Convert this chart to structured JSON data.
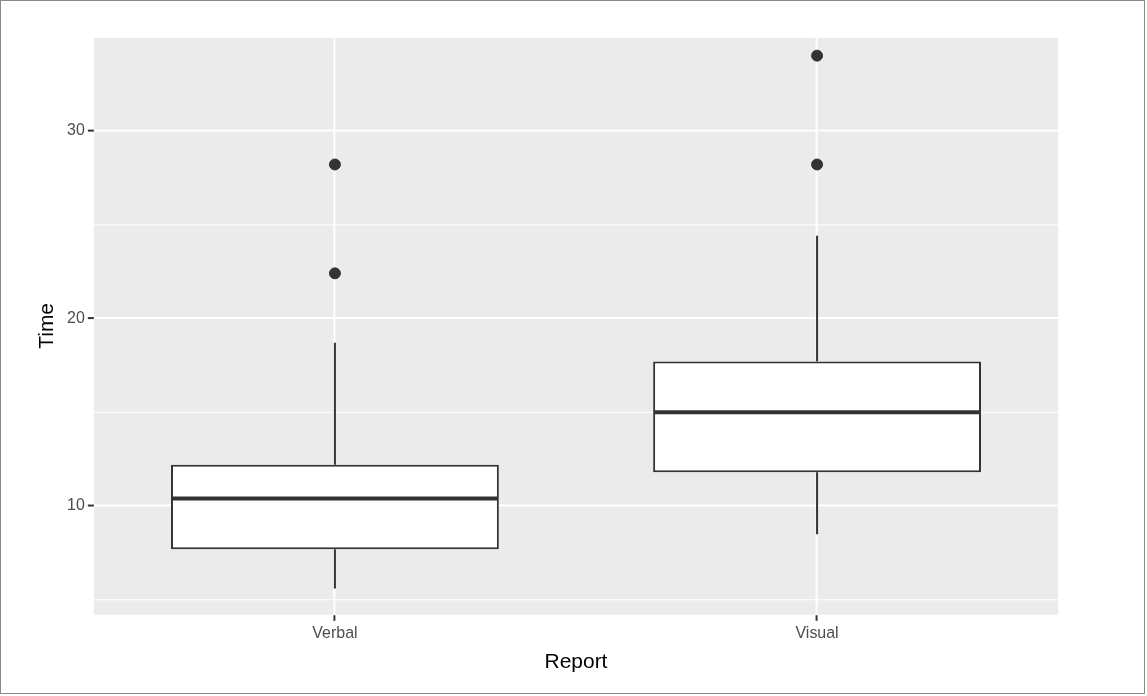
{
  "chart_data": {
    "type": "box",
    "xlabel": "Report",
    "ylabel": "Time",
    "categories": [
      "Verbal",
      "Visual"
    ],
    "boxes": [
      {
        "low": 5.6,
        "q1": 7.7,
        "median": 10.4,
        "q3": 12.2,
        "high": 18.7,
        "outliers": [
          22.4,
          28.2
        ]
      },
      {
        "low": 8.5,
        "q1": 11.8,
        "median": 15.0,
        "q3": 17.7,
        "high": 24.4,
        "outliers": [
          28.2,
          34.0
        ]
      }
    ],
    "ylim": [
      4.2,
      35.0
    ],
    "yticks": [
      {
        "value": 5,
        "label": null
      },
      10,
      {
        "value": 15,
        "label": null
      },
      20,
      {
        "value": 25,
        "label": null
      },
      30,
      {
        "value": 35,
        "label": null
      }
    ],
    "grid": true
  }
}
